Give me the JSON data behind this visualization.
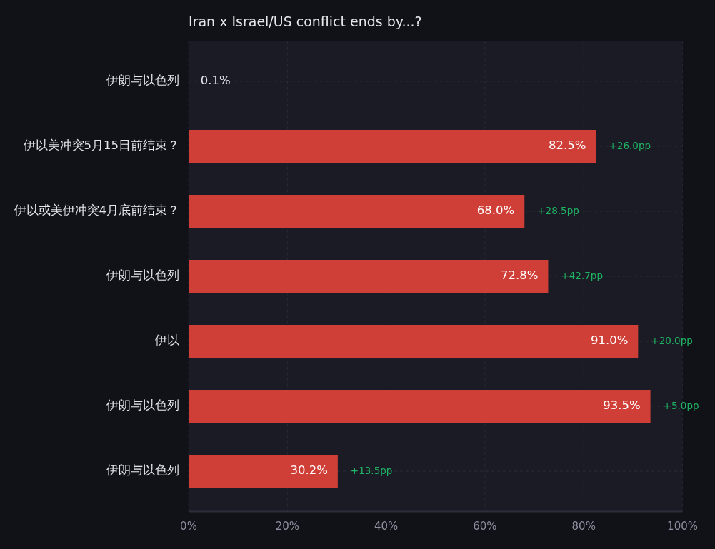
{
  "chart_data": {
    "type": "bar",
    "orientation": "horizontal",
    "title": "Iran x Israel/US conflict ends by...?",
    "categories": [
      "伊朗与以色列",
      "伊以美冲突5月15日前结束？",
      "伊以或美伊冲突4月底前结束？",
      "伊朗与以色列",
      "伊以",
      "伊朗与以色列",
      "伊朗与以色列"
    ],
    "values": [
      0.1,
      82.5,
      68.0,
      72.8,
      91.0,
      93.5,
      30.2
    ],
    "colors": [
      "#a9acb8",
      "#cf3f37",
      "#cf3f37",
      "#cf3f37",
      "#cf3f37",
      "#cf3f37",
      "#cf3f37"
    ],
    "value_labels": [
      "0.1%",
      "82.5%",
      "68.0%",
      "72.8%",
      "91.0%",
      "93.5%",
      "30.2%"
    ],
    "xlim": [
      0,
      100
    ],
    "xticks": [
      {
        "value": 0,
        "label": "0%"
      },
      {
        "value": 20,
        "label": "20%"
      },
      {
        "value": 40,
        "label": "40%"
      },
      {
        "value": 60,
        "label": "60%"
      },
      {
        "value": 80,
        "label": "80%"
      },
      {
        "value": 100,
        "label": "100%"
      }
    ],
    "grid": true,
    "annotations": [
      "+26.0pp",
      "+28.5pp",
      "+42.7pp",
      "+20.0pp",
      "+5.0pp",
      "+13.5pp"
    ]
  }
}
